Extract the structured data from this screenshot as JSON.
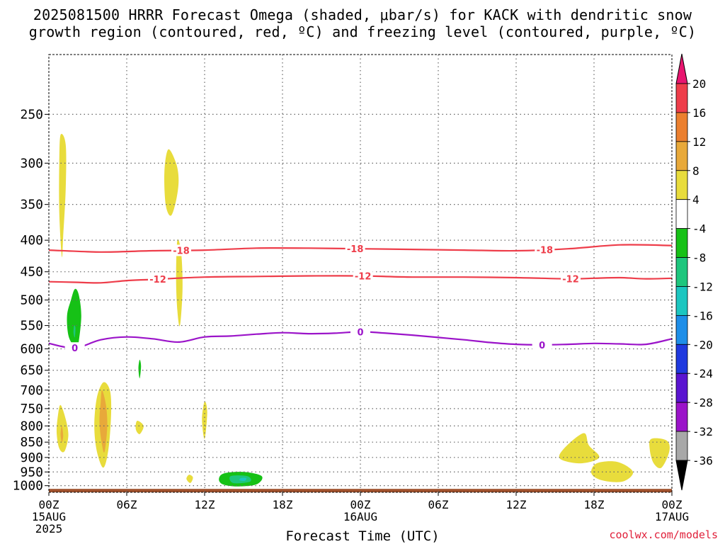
{
  "title_line1": "2025081500 HRRR Forecast Omega (shaded, μbar/s) for KACK with dendritic snow",
  "title_line2": "growth region (contoured, red, ºC) and freezing level (contoured, purple, ºC)",
  "credit": "coolwx.com/models",
  "chart_data": {
    "type": "heatmap",
    "title": "2025081500 HRRR Forecast Omega (shaded, μbar/s) for KACK with dendritic snow growth region (contoured, red, ºC) and freezing level (contoured, purple, ºC)",
    "xlabel": "Forecast Time (UTC)",
    "ylabel": "",
    "x_range_hours": [
      0,
      48
    ],
    "x_ticks": [
      {
        "hour": 0,
        "lines": [
          "00Z",
          "15AUG",
          "2025"
        ]
      },
      {
        "hour": 6,
        "lines": [
          "06Z"
        ]
      },
      {
        "hour": 12,
        "lines": [
          "12Z"
        ]
      },
      {
        "hour": 18,
        "lines": [
          "18Z"
        ]
      },
      {
        "hour": 24,
        "lines": [
          "00Z",
          "16AUG"
        ]
      },
      {
        "hour": 30,
        "lines": [
          "06Z"
        ]
      },
      {
        "hour": 36,
        "lines": [
          "12Z"
        ]
      },
      {
        "hour": 42,
        "lines": [
          "18Z"
        ]
      },
      {
        "hour": 48,
        "lines": [
          "00Z",
          "17AUG"
        ]
      }
    ],
    "y_range_hpa": [
      1025,
      200
    ],
    "y_scale": "log",
    "y_ticks": [
      250,
      300,
      350,
      400,
      450,
      500,
      550,
      600,
      650,
      700,
      750,
      800,
      850,
      900,
      950,
      1000
    ],
    "grid": true,
    "colorbar": {
      "labels": [
        "20",
        "16",
        "12",
        "8",
        "4",
        "-4",
        "-8",
        "-12",
        "-16",
        "-20",
        "-24",
        "-28",
        "-32",
        "-36"
      ],
      "colors": [
        "#e8156f",
        "#ee3d4a",
        "#eb7f2e",
        "#e8a93a",
        "#e8dc3c",
        "#ffffff",
        "#16c116",
        "#1ec67d",
        "#1cc6c0",
        "#1e8ee8",
        "#1f39df",
        "#5a14d0",
        "#9b14c9",
        "#a8a8a8",
        "#000000"
      ]
    },
    "contours": [
      {
        "label": "-18",
        "color": "#ee3d4a",
        "label_hours": [
          10.2,
          23.6,
          38.2
        ],
        "points": [
          [
            0,
            415
          ],
          [
            4,
            418
          ],
          [
            8,
            416
          ],
          [
            12,
            415
          ],
          [
            16,
            412
          ],
          [
            20,
            412
          ],
          [
            24,
            413
          ],
          [
            28,
            414
          ],
          [
            32,
            415
          ],
          [
            36,
            416
          ],
          [
            40,
            413
          ],
          [
            44,
            407
          ],
          [
            48,
            408
          ]
        ]
      },
      {
        "label": "-12",
        "color": "#ee3d4a",
        "label_hours": [
          8.4,
          24.2,
          40.2
        ],
        "points": [
          [
            0,
            467
          ],
          [
            2,
            468
          ],
          [
            4,
            469
          ],
          [
            6,
            465
          ],
          [
            8,
            463
          ],
          [
            12,
            459
          ],
          [
            16,
            458
          ],
          [
            20,
            457
          ],
          [
            24,
            457
          ],
          [
            28,
            459
          ],
          [
            32,
            459
          ],
          [
            36,
            460
          ],
          [
            40,
            462
          ],
          [
            42,
            461
          ],
          [
            44,
            460
          ],
          [
            46,
            462
          ],
          [
            48,
            461
          ]
        ]
      },
      {
        "label": "0",
        "color": "#9b14c9",
        "label_hours": [
          2,
          24,
          38
        ],
        "points": [
          [
            0,
            588
          ],
          [
            2,
            598
          ],
          [
            4,
            580
          ],
          [
            6,
            574
          ],
          [
            8,
            578
          ],
          [
            10,
            585
          ],
          [
            12,
            574
          ],
          [
            14,
            572
          ],
          [
            16,
            568
          ],
          [
            18,
            565
          ],
          [
            20,
            567
          ],
          [
            22,
            566
          ],
          [
            24,
            563
          ],
          [
            26,
            566
          ],
          [
            28,
            570
          ],
          [
            30,
            575
          ],
          [
            32,
            580
          ],
          [
            34,
            586
          ],
          [
            36,
            590
          ],
          [
            38,
            591
          ],
          [
            40,
            590
          ],
          [
            42,
            588
          ],
          [
            44,
            589
          ],
          [
            46,
            590
          ],
          [
            48,
            578
          ]
        ]
      }
    ],
    "omega_regions": [
      {
        "value": 4,
        "points": [
          [
            0.9,
            270
          ],
          [
            1.3,
            280
          ],
          [
            1.3,
            330
          ],
          [
            1.1,
            395
          ],
          [
            1.0,
            425
          ],
          [
            0.8,
            360
          ],
          [
            0.8,
            300
          ]
        ]
      },
      {
        "value": 4,
        "points": [
          [
            9.2,
            285
          ],
          [
            9.8,
            300
          ],
          [
            10.0,
            320
          ],
          [
            9.8,
            345
          ],
          [
            9.4,
            365
          ],
          [
            9.0,
            350
          ],
          [
            8.9,
            310
          ]
        ]
      },
      {
        "value": 4,
        "points": [
          [
            9.9,
            400
          ],
          [
            10.2,
            420
          ],
          [
            10.3,
            480
          ],
          [
            10.1,
            550
          ],
          [
            9.9,
            520
          ],
          [
            9.8,
            460
          ]
        ]
      },
      {
        "value": -4,
        "points": [
          [
            2.0,
            480
          ],
          [
            2.3,
            490
          ],
          [
            2.5,
            530
          ],
          [
            2.3,
            585
          ],
          [
            2.1,
            610
          ],
          [
            1.9,
            595
          ],
          [
            1.5,
            570
          ],
          [
            1.4,
            530
          ],
          [
            1.7,
            500
          ]
        ]
      },
      {
        "value": -8,
        "points": [
          [
            1.95,
            550
          ],
          [
            2.05,
            555
          ],
          [
            2.0,
            575
          ],
          [
            1.9,
            565
          ]
        ]
      },
      {
        "value": -4,
        "points": [
          [
            7.0,
            625
          ],
          [
            7.1,
            640
          ],
          [
            7.0,
            670
          ],
          [
            6.9,
            645
          ]
        ]
      },
      {
        "value": 4,
        "points": [
          [
            0.9,
            740
          ],
          [
            1.3,
            780
          ],
          [
            1.5,
            830
          ],
          [
            1.2,
            880
          ],
          [
            0.8,
            870
          ],
          [
            0.6,
            820
          ],
          [
            0.7,
            770
          ]
        ]
      },
      {
        "value": 8,
        "points": [
          [
            1.0,
            800
          ],
          [
            1.1,
            830
          ],
          [
            1.0,
            850
          ],
          [
            0.9,
            825
          ]
        ]
      },
      {
        "value": 4,
        "points": [
          [
            4.2,
            680
          ],
          [
            4.7,
            700
          ],
          [
            4.8,
            760
          ],
          [
            4.6,
            870
          ],
          [
            4.2,
            935
          ],
          [
            3.7,
            880
          ],
          [
            3.5,
            800
          ],
          [
            3.7,
            720
          ]
        ]
      },
      {
        "value": 8,
        "points": [
          [
            4.1,
            700
          ],
          [
            4.4,
            740
          ],
          [
            4.5,
            800
          ],
          [
            4.3,
            880
          ],
          [
            4.1,
            860
          ],
          [
            3.9,
            790
          ],
          [
            4.0,
            730
          ]
        ]
      },
      {
        "value": 4,
        "points": [
          [
            6.8,
            785
          ],
          [
            7.3,
            800
          ],
          [
            7.0,
            825
          ],
          [
            6.7,
            810
          ]
        ]
      },
      {
        "value": 4,
        "points": [
          [
            12.0,
            730
          ],
          [
            12.2,
            760
          ],
          [
            12.0,
            840
          ],
          [
            11.8,
            780
          ]
        ]
      },
      {
        "value": 4,
        "points": [
          [
            10.8,
            960
          ],
          [
            11.1,
            970
          ],
          [
            10.9,
            990
          ],
          [
            10.6,
            975
          ]
        ]
      },
      {
        "value": -4,
        "points": [
          [
            13.5,
            955
          ],
          [
            15.0,
            950
          ],
          [
            16.4,
            965
          ],
          [
            16.0,
            995
          ],
          [
            14.5,
            1003
          ],
          [
            13.4,
            995
          ],
          [
            13.1,
            975
          ]
        ]
      },
      {
        "value": -8,
        "points": [
          [
            14.0,
            965
          ],
          [
            15.3,
            965
          ],
          [
            15.5,
            985
          ],
          [
            14.2,
            990
          ]
        ]
      },
      {
        "value": -12,
        "points": [
          [
            14.8,
            972
          ],
          [
            15.2,
            972
          ],
          [
            15.1,
            982
          ],
          [
            14.7,
            980
          ]
        ]
      },
      {
        "value": 4,
        "points": [
          [
            41.2,
            822
          ],
          [
            41.6,
            860
          ],
          [
            42.4,
            900
          ],
          [
            41.0,
            920
          ],
          [
            39.4,
            905
          ],
          [
            39.7,
            870
          ]
        ]
      },
      {
        "value": 4,
        "points": [
          [
            42.2,
            920
          ],
          [
            43.8,
            915
          ],
          [
            45.0,
            950
          ],
          [
            44.2,
            985
          ],
          [
            42.6,
            980
          ],
          [
            41.8,
            955
          ]
        ]
      },
      {
        "value": 4,
        "points": [
          [
            46.4,
            840
          ],
          [
            47.6,
            845
          ],
          [
            47.8,
            880
          ],
          [
            47.2,
            935
          ],
          [
            46.6,
            920
          ],
          [
            46.3,
            875
          ]
        ]
      }
    ]
  }
}
